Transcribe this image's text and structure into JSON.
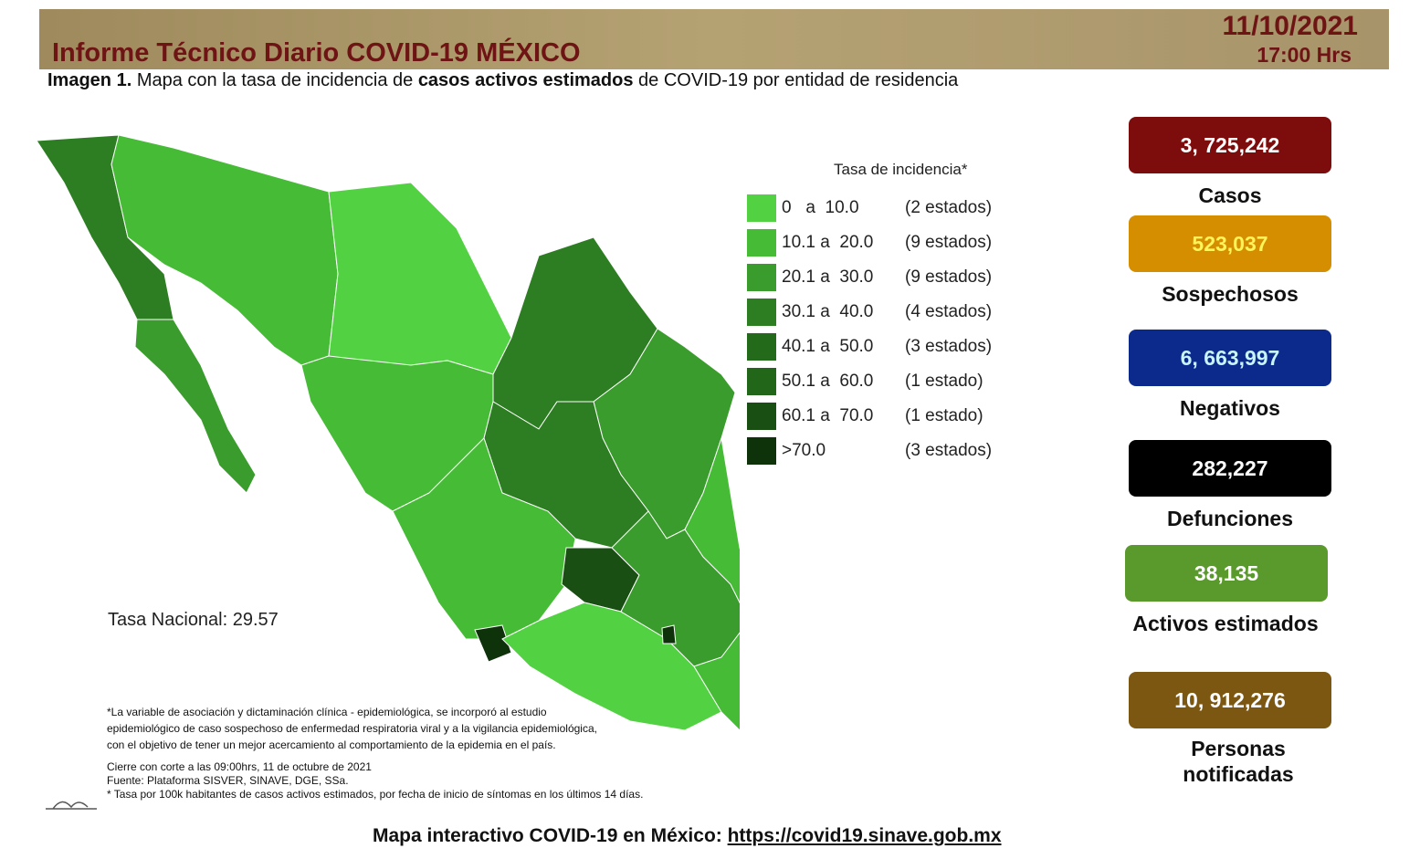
{
  "header": {
    "title": "Informe Técnico Diario COVID-19 MÉXICO",
    "date": "11/10/2021",
    "time": "17:00 Hrs"
  },
  "subtitle": {
    "label": "Imagen 1.",
    "text_1": " Mapa con la tasa de incidencia de ",
    "bold": "casos activos estimados",
    "text_2": " de COVID-19 por entidad de residencia"
  },
  "legend": {
    "title": "Tasa de incidencia*",
    "items": [
      {
        "range": "0   a  10.0",
        "count": "(2 estados)",
        "color": "#52d242"
      },
      {
        "range": "10.1 a  20.0",
        "count": "(9 estados)",
        "color": "#46bb36"
      },
      {
        "range": "20.1 a  30.0",
        "count": "(9 estados)",
        "color": "#3a9c2c"
      },
      {
        "range": "30.1 a  40.0",
        "count": "(4 estados)",
        "color": "#2d7e22"
      },
      {
        "range": "40.1 a  50.0",
        "count": "(3 estados)",
        "color": "#246a1b"
      },
      {
        "range": "50.1 a  60.0",
        "count": "(1 estado)",
        "color": "#22661a"
      },
      {
        "range": "60.1 a  70.0",
        "count": "(1 estado)",
        "color": "#1a4f13"
      },
      {
        "range": ">70.0",
        "count": "(3 estados)",
        "color": "#0e330b"
      }
    ]
  },
  "tasa_nacional": "Tasa Nacional: 29.57",
  "notes": {
    "lines": [
      "*La variable de asociación y dictaminación clínica - epidemiológica, se incorporó al estudio",
      "epidemiológico de caso sospechoso de enfermedad respiratoria viral y a la vigilancia epidemiológica,",
      "con el objetivo de tener un mejor acercamiento al comportamiento de la epidemia en el país."
    ],
    "cierre": "Cierre con corte a las 09:00hrs, 11 de octubre de 2021",
    "fuente": "Fuente: Plataforma SISVER, SINAVE, DGE, SSa.",
    "tasa": "* Tasa por 100k habitantes de casos activos estimados, por fecha de inicio de síntomas en los últimos 14 días."
  },
  "stats": [
    {
      "value": "3, 725,242",
      "label": "Casos",
      "bg": "#7d0c0c",
      "fg": "#ffffff"
    },
    {
      "value": "523,037",
      "label": "Sospechosos",
      "bg": "#d58e00",
      "fg": "#fff45a"
    },
    {
      "value": "6, 663,997",
      "label": "Negativos",
      "bg": "#0b2a8c",
      "fg": "#c8f4ff"
    },
    {
      "value": "282,227",
      "label": "Defunciones",
      "bg": "#000000",
      "fg": "#ffffff"
    },
    {
      "value": "38,135",
      "label": "Activos estimados",
      "bg": "#5a9a2c",
      "fg": "#ffffff"
    },
    {
      "value": "10, 912,276",
      "label": "Personas notificadas",
      "bg": "#7b5712",
      "fg": "#ffffff"
    }
  ],
  "footer": {
    "text": "Mapa interactivo COVID-19 en México: ",
    "link": "https://covid19.sinave.gob.mx"
  }
}
